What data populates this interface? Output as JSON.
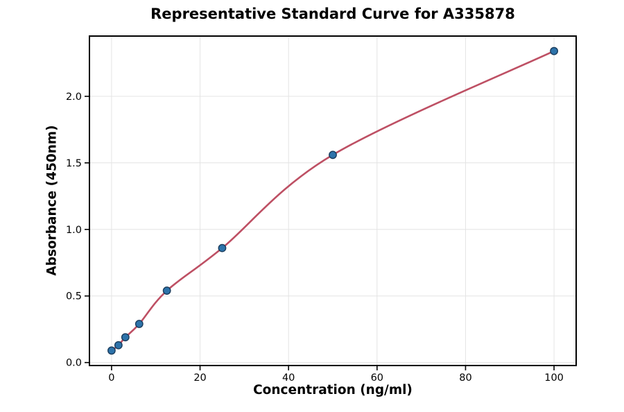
{
  "chart_data": {
    "type": "scatter",
    "title": "Representative Standard Curve for A335878",
    "xlabel": "Concentration (ng/ml)",
    "ylabel": "Absorbance (450nm)",
    "x": [
      0,
      1.56,
      3.12,
      6.25,
      12.5,
      25,
      50,
      100
    ],
    "y": [
      0.09,
      0.13,
      0.19,
      0.29,
      0.54,
      0.86,
      1.56,
      2.34
    ],
    "fit_line": "smooth sigmoidal (4PL-style) fit curve drawn through the standard points",
    "xlim": [
      -5,
      105
    ],
    "ylim": [
      -0.0225,
      2.4525
    ],
    "xticks": [
      0,
      20,
      40,
      60,
      80,
      100
    ],
    "xtick_labels": [
      "0",
      "20",
      "40",
      "60",
      "80",
      "100"
    ],
    "yticks": [
      0,
      0.5,
      1.0,
      1.5,
      2.0
    ],
    "ytick_labels": [
      "0.0",
      "0.5",
      "1.0",
      "1.5",
      "2.0"
    ],
    "grid": true,
    "legend": "none",
    "colors": {
      "curve": "#be5064",
      "marker_fill": "#2d73aa",
      "marker_edge": "#1a3c5c",
      "grid": "#e4e4e4",
      "spine": "#000000",
      "text": "#000000",
      "background": "#ffffff"
    }
  }
}
